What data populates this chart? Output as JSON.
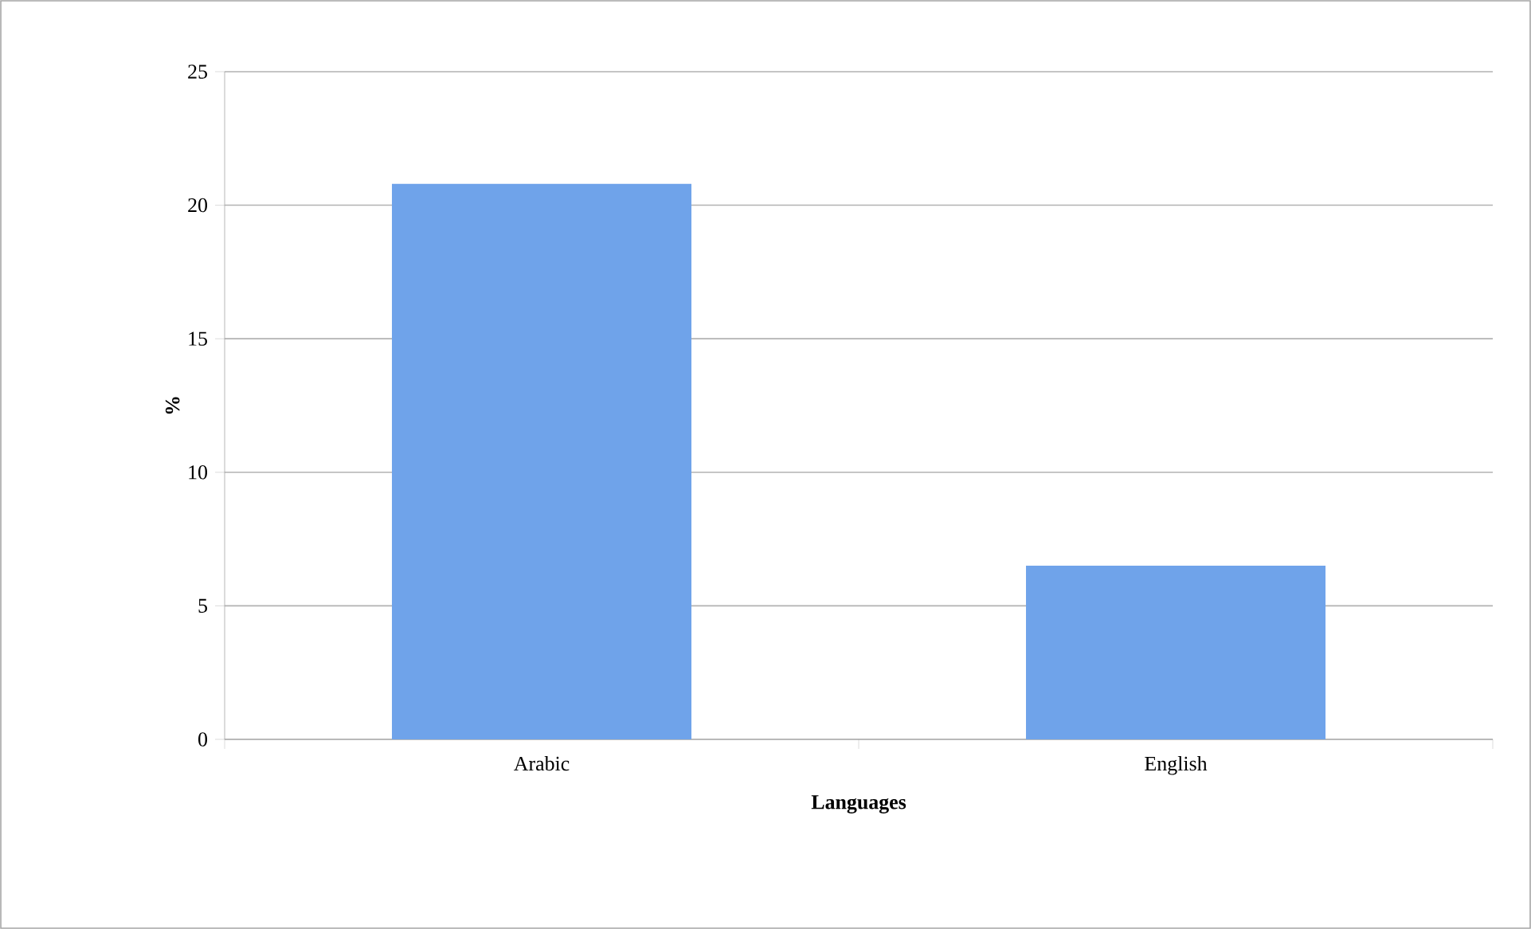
{
  "chart_data": {
    "type": "bar",
    "categories": [
      "Arabic",
      "English"
    ],
    "values": [
      20.8,
      6.5
    ],
    "color": "#6fa3ea",
    "ylim": [
      0,
      25
    ],
    "yticks": [
      0,
      5,
      10,
      15,
      20,
      25
    ],
    "xlabel": "Languages",
    "ylabel": "%",
    "grid": "y"
  }
}
